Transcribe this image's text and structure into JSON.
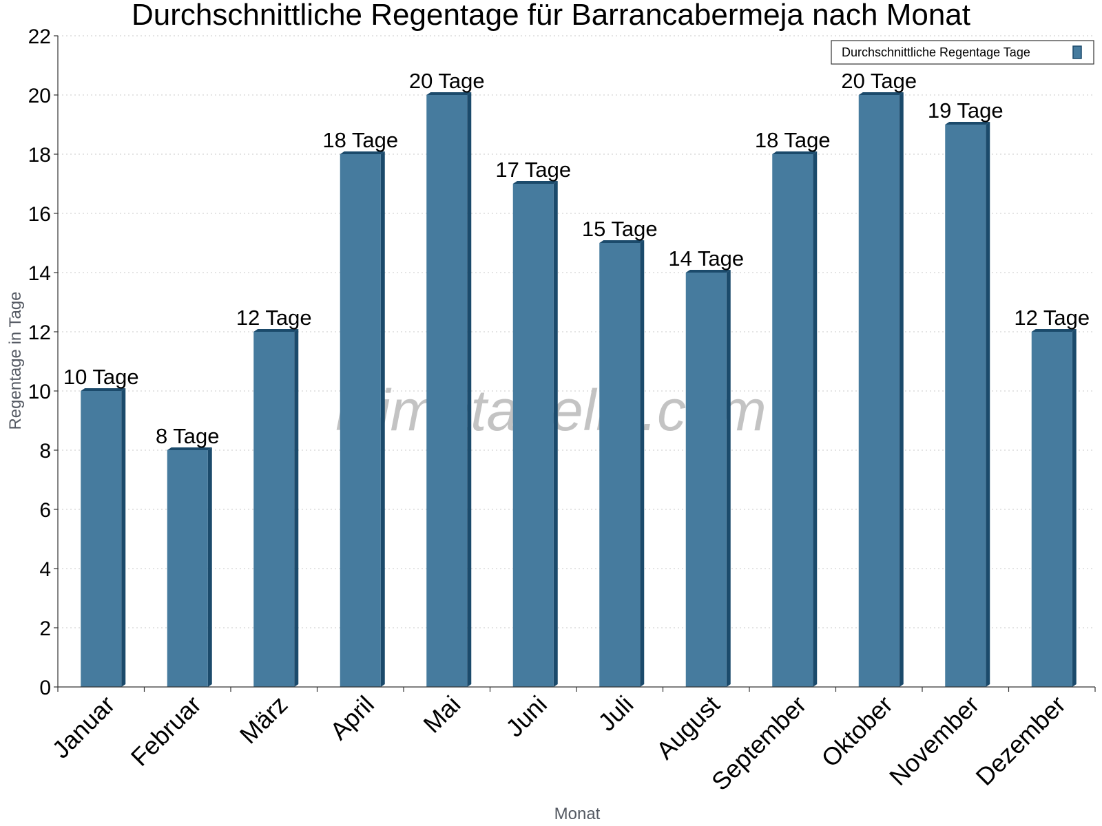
{
  "chart_data": {
    "type": "bar",
    "title": "Durchschnittliche Regentage für Barrancabermeja nach Monat",
    "xlabel": "Monat",
    "ylabel": "Regentage in Tage",
    "categories": [
      "Januar",
      "Februar",
      "März",
      "April",
      "Mai",
      "Juni",
      "Juli",
      "August",
      "September",
      "Oktober",
      "November",
      "Dezember"
    ],
    "series": [
      {
        "name": "Durchschnittliche Regentage Tage",
        "values": [
          10,
          8,
          12,
          18,
          20,
          17,
          15,
          14,
          18,
          20,
          19,
          12
        ],
        "data_labels": [
          "10 Tage",
          "8 Tage",
          "12 Tage",
          "18 Tage",
          "20 Tage",
          "17 Tage",
          "15 Tage",
          "14 Tage",
          "18 Tage",
          "20 Tage",
          "19 Tage",
          "12 Tage"
        ]
      }
    ],
    "ylim": [
      0,
      22
    ],
    "yticks": [
      0,
      2,
      4,
      6,
      8,
      10,
      12,
      14,
      16,
      18,
      20,
      22
    ],
    "grid": true,
    "legend_position": "top-right",
    "colors": {
      "bar_face": "#467b9e",
      "bar_side": "#1b4a6b",
      "grid": "#c8c8c8",
      "axis": "#333333"
    }
  },
  "watermark": "klimatabelle.com"
}
